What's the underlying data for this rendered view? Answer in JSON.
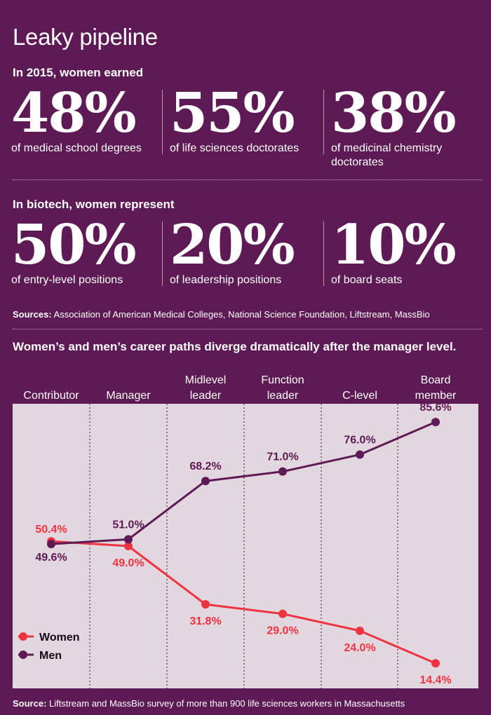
{
  "title": "Leaky pipeline",
  "degrees": {
    "heading": "In 2015, women earned",
    "stats": [
      {
        "value": "48%",
        "label": "of medical school degrees"
      },
      {
        "value": "55%",
        "label": "of life sciences doctorates"
      },
      {
        "value": "38%",
        "label": "of medicinal chemistry doctorates"
      }
    ]
  },
  "biotech": {
    "heading": "In biotech, women represent",
    "stats": [
      {
        "value": "50%",
        "label": "of entry-level positions"
      },
      {
        "value": "20%",
        "label": "of leadership positions"
      },
      {
        "value": "10%",
        "label": "of board seats"
      }
    ]
  },
  "sources_top": {
    "label": "Sources:",
    "text": " Association of American Medical Colleges, National Science Foundation, Liftstream, MassBio"
  },
  "sources_bottom": {
    "label": "Source:",
    "text": " Liftstream and MassBio survey of more than 900 life sciences workers in Massachusetts"
  },
  "colors": {
    "background": "#5e1a54",
    "plot_background": "#e2d6df",
    "women": "#ee3340",
    "men": "#5e1a54"
  },
  "chart_data": {
    "type": "line",
    "title": "Women’s and men’s career paths diverge dramatically after the manager level.",
    "categories": [
      [
        "Contributor"
      ],
      [
        "Manager"
      ],
      [
        "Midlevel",
        "leader"
      ],
      [
        "Function",
        "leader"
      ],
      [
        "C-level"
      ],
      [
        "Board",
        "member"
      ]
    ],
    "series": [
      {
        "name": "Women",
        "values": [
          50.4,
          49.0,
          31.8,
          29.0,
          24.0,
          14.4
        ],
        "labels": [
          "50.4%",
          "49.0%",
          "31.8%",
          "29.0%",
          "24.0%",
          "14.4%"
        ]
      },
      {
        "name": "Men",
        "values": [
          49.6,
          51.0,
          68.2,
          71.0,
          76.0,
          85.6
        ],
        "labels": [
          "49.6%",
          "51.0%",
          "68.2%",
          "71.0%",
          "76.0%",
          "85.6%"
        ]
      }
    ],
    "ylim": [
      7,
      91
    ],
    "legend": "bottom-left",
    "grid": "dotted vertical separators between categories"
  }
}
